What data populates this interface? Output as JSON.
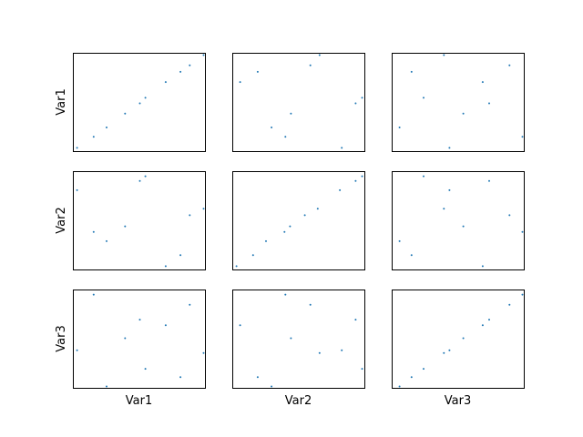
{
  "chart_data": {
    "type": "scatter",
    "variables": [
      "Var1",
      "Var2",
      "Var3"
    ],
    "marker_color": "#1f77b4",
    "show_ticks": false,
    "grid": false,
    "panels": [
      {
        "row": "Var1",
        "col": "Var1",
        "x": [
          2,
          20,
          34,
          54,
          70,
          76,
          98,
          114,
          124,
          139
        ],
        "y": [
          2,
          14,
          24,
          39,
          50,
          56,
          73,
          84,
          91,
          102
        ]
      },
      {
        "row": "Var1",
        "col": "Var2",
        "x": [
          6,
          25,
          40,
          55,
          61,
          82,
          92,
          116,
          131,
          138
        ],
        "y": [
          73,
          84,
          24,
          14,
          39,
          91,
          102,
          2,
          50,
          56
        ]
      },
      {
        "row": "Var1",
        "col": "Var3",
        "x": [
          6,
          19,
          32,
          54,
          60,
          75,
          96,
          103,
          125,
          139
        ],
        "y": [
          24,
          84,
          56,
          102,
          2,
          39,
          73,
          50,
          91,
          14
        ]
      },
      {
        "row": "Var2",
        "col": "Var1",
        "x": [
          2,
          20,
          34,
          54,
          70,
          76,
          98,
          114,
          124,
          139
        ],
        "y": [
          84,
          39,
          29,
          45,
          94,
          99,
          2,
          14,
          57,
          64
        ]
      },
      {
        "row": "Var2",
        "col": "Var2",
        "x": [
          2,
          20,
          34,
          54,
          60,
          76,
          90,
          114,
          131,
          138
        ],
        "y": [
          2,
          14,
          29,
          39,
          45,
          57,
          64,
          84,
          94,
          99
        ]
      },
      {
        "row": "Var2",
        "col": "Var3",
        "x": [
          6,
          19,
          32,
          54,
          60,
          75,
          96,
          103,
          125,
          139
        ],
        "y": [
          29,
          14,
          99,
          64,
          84,
          45,
          2,
          94,
          57,
          39
        ]
      },
      {
        "row": "Var3",
        "col": "Var1",
        "x": [
          2,
          20,
          34,
          54,
          70,
          76,
          98,
          114,
          124,
          139
        ],
        "y": [
          39,
          99,
          0,
          52,
          72,
          19,
          66,
          10,
          88,
          36
        ]
      },
      {
        "row": "Var3",
        "col": "Var2",
        "x": [
          6,
          25,
          40,
          55,
          61,
          82,
          92,
          116,
          131,
          138
        ],
        "y": [
          66,
          10,
          0,
          99,
          52,
          88,
          36,
          39,
          72,
          19
        ]
      },
      {
        "row": "Var3",
        "col": "Var3",
        "x": [
          6,
          19,
          32,
          54,
          60,
          75,
          96,
          103,
          125,
          139
        ],
        "y": [
          0,
          10,
          19,
          36,
          39,
          52,
          66,
          72,
          88,
          99
        ]
      }
    ]
  }
}
